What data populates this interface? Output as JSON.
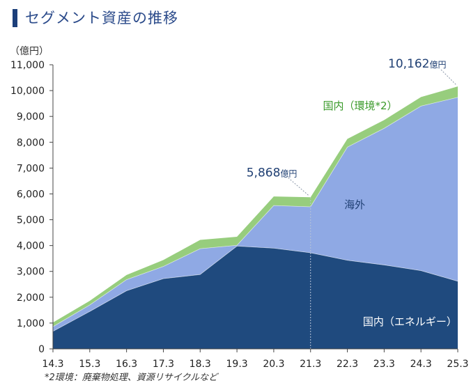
{
  "header": {
    "title": "セグメント資産の推移"
  },
  "footnote": "*2環境：廃棄物処理、資源リサイクルなど",
  "chart_data": {
    "type": "area",
    "stacked": true,
    "y_unit_label": "（億円）",
    "categories": [
      "14.3",
      "15.3",
      "16.3",
      "17.3",
      "18.3",
      "19.3",
      "20.3",
      "21.3",
      "22.3",
      "23.3",
      "24.3",
      "25.3"
    ],
    "ylim": [
      0,
      11000
    ],
    "yticks": [
      "0",
      "1,000",
      "2,000",
      "3,000",
      "4,000",
      "5,000",
      "6,000",
      "7,000",
      "8,000",
      "9,000",
      "10,000",
      "11,000"
    ],
    "series": [
      {
        "name": "国内（エネルギー）",
        "color": "#1f4a7e",
        "text_color": "#ffffff",
        "values": [
          680,
          1450,
          2250,
          2720,
          2880,
          3980,
          3900,
          3720,
          3430,
          3250,
          3030,
          2620
        ]
      },
      {
        "name": "海外",
        "color": "#8fa9e4",
        "text_color": "#1f3f73",
        "values": [
          180,
          250,
          430,
          470,
          1000,
          30,
          1650,
          1780,
          4380,
          5290,
          6370,
          7120
        ]
      },
      {
        "name": "国内（環境*2）",
        "color": "#97cd7d",
        "text_color": "#3a9a2a",
        "values": [
          160,
          160,
          180,
          250,
          340,
          330,
          350,
          370,
          320,
          320,
          350,
          420
        ]
      }
    ],
    "annotations": [
      {
        "category": "21.3",
        "value": 5868,
        "text": "5,868",
        "unit": "億円"
      },
      {
        "category": "25.3",
        "value": 10162,
        "text": "10,162",
        "unit": "億円"
      }
    ]
  }
}
